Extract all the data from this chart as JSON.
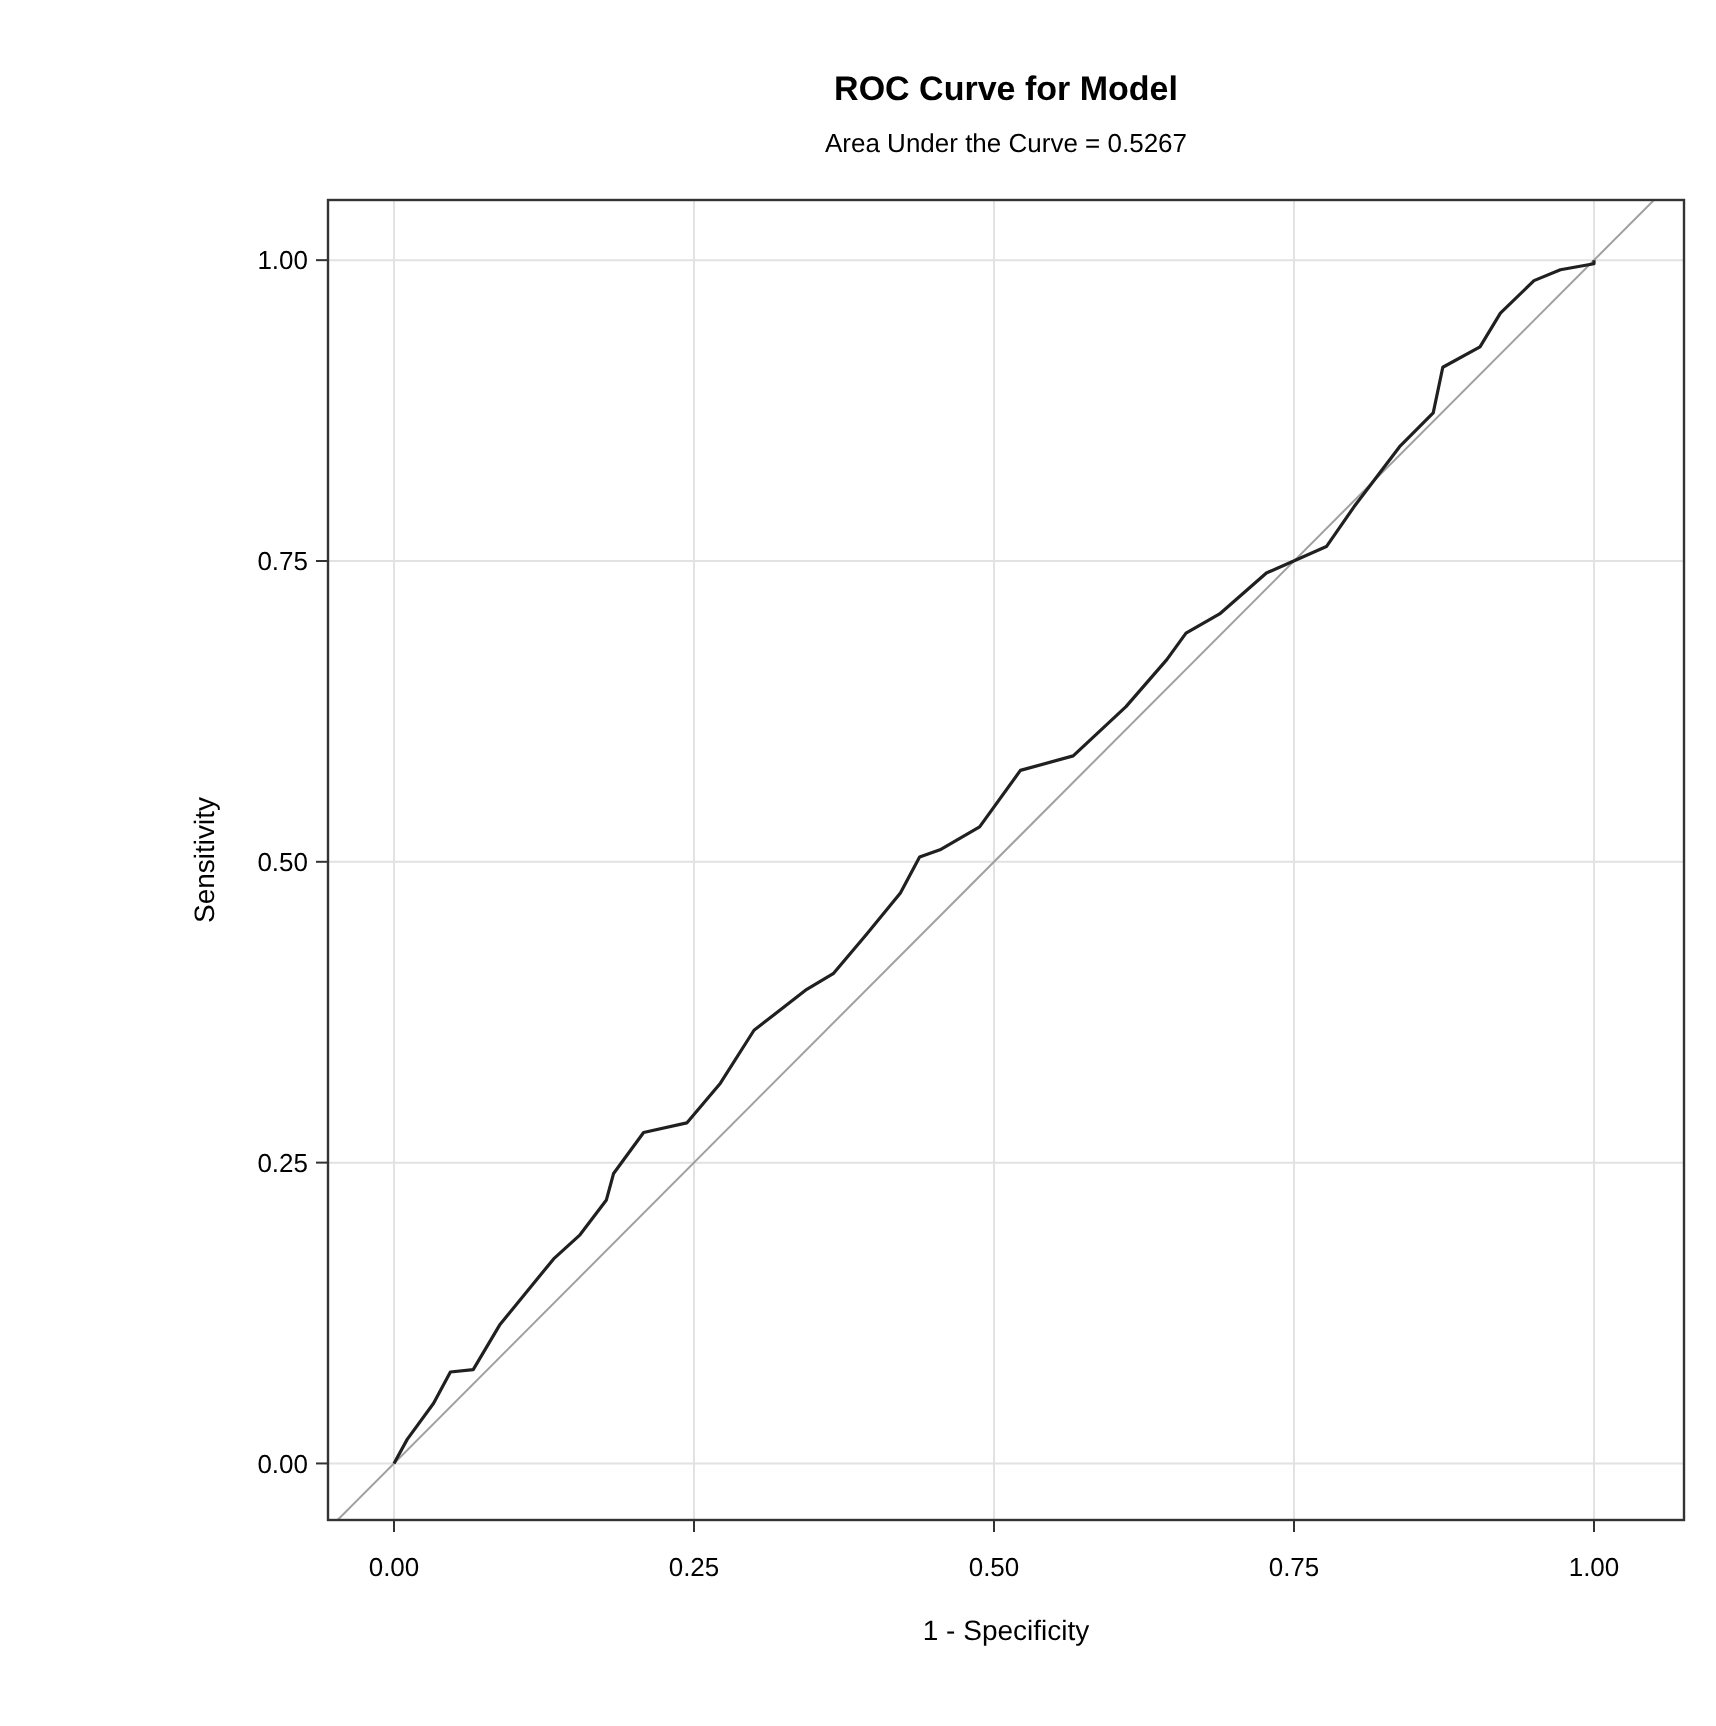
{
  "chart_data": {
    "type": "line",
    "title": "ROC Curve for Model",
    "subtitle": "Area Under the Curve = 0.5267",
    "xlabel": "1 - Specificity",
    "ylabel": "Sensitivity",
    "xlim": [
      -0.055,
      1.075
    ],
    "ylim": [
      -0.047,
      1.05
    ],
    "xticks": [
      {
        "value": 0,
        "label": "0.00"
      },
      {
        "value": 0.25,
        "label": "0.25"
      },
      {
        "value": 0.5,
        "label": "0.50"
      },
      {
        "value": 0.75,
        "label": "0.75"
      },
      {
        "value": 1,
        "label": "1.00"
      }
    ],
    "yticks": [
      {
        "value": 0,
        "label": "0.00"
      },
      {
        "value": 0.25,
        "label": "0.25"
      },
      {
        "value": 0.5,
        "label": "0.50"
      },
      {
        "value": 0.75,
        "label": "0.75"
      },
      {
        "value": 1,
        "label": "1.00"
      }
    ],
    "grid": true,
    "line_style": "solid",
    "series": [
      {
        "color": "#a0a0a0",
        "x": [
          -0.047,
          1.05
        ],
        "values": [
          -0.047,
          1.05
        ]
      },
      {
        "color": "#202020",
        "x": [
          0,
          0.011,
          0.033,
          0.047,
          0.066,
          0.088,
          0.133,
          0.155,
          0.177,
          0.183,
          0.208,
          0.244,
          0.272,
          0.3,
          0.344,
          0.366,
          0.394,
          0.422,
          0.438,
          0.455,
          0.488,
          0.522,
          0.566,
          0.61,
          0.644,
          0.66,
          0.688,
          0.727,
          0.777,
          0.8,
          0.838,
          0.866,
          0.874,
          0.905,
          0.922,
          0.95,
          0.972,
          1.0,
          1.0
        ],
        "values": [
          0,
          0.02,
          0.05,
          0.076,
          0.078,
          0.115,
          0.17,
          0.19,
          0.219,
          0.241,
          0.275,
          0.283,
          0.316,
          0.36,
          0.394,
          0.407,
          0.44,
          0.474,
          0.504,
          0.51,
          0.529,
          0.576,
          0.588,
          0.629,
          0.668,
          0.69,
          0.706,
          0.74,
          0.762,
          0.795,
          0.845,
          0.873,
          0.911,
          0.928,
          0.956,
          0.983,
          0.992,
          0.997,
          1.0
        ]
      }
    ]
  }
}
